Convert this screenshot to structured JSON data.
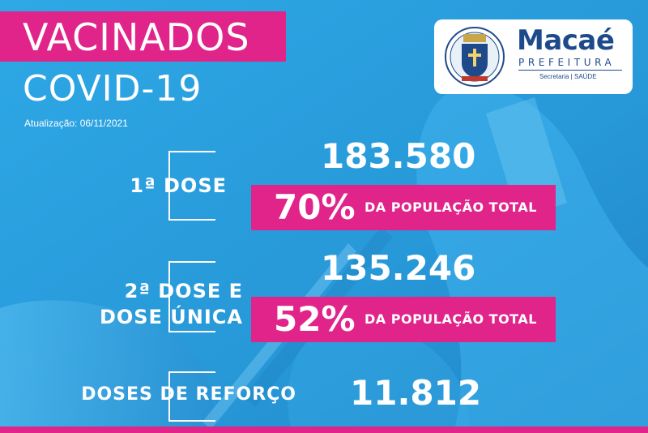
{
  "header": {
    "title": "VACINADOS",
    "subtitle": "COVID-19",
    "update": "Atualização: 06/11/2021"
  },
  "logo": {
    "brand": "Macaé",
    "brand_sub": "PREFEITURA",
    "department": "Secretaria | SAÚDE"
  },
  "stats": {
    "first_dose": {
      "label": "1ª DOSE",
      "total": "183.580",
      "percent": "70%",
      "percent_text": "DA POPULAÇÃO TOTAL"
    },
    "second_dose": {
      "label_line1": "2ª DOSE E",
      "label_line2": "DOSE ÚNICA",
      "total": "135.246",
      "percent": "52%",
      "percent_text": "DA POPULAÇÃO TOTAL"
    },
    "booster": {
      "label": "DOSES DE REFORÇO",
      "total": "11.812"
    }
  },
  "colors": {
    "background": "#2a9fdf",
    "accent": "#e0248a",
    "brand": "#1e4a8c"
  }
}
